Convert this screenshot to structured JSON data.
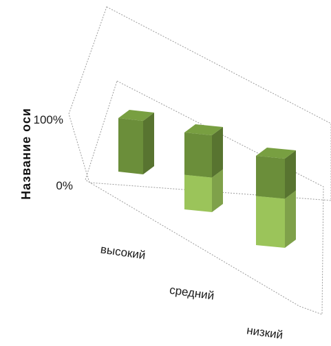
{
  "chart_data": {
    "type": "bar",
    "subtype": "3d-stacked-100-percent",
    "title": "",
    "xlabel": "",
    "ylabel": "Название оси",
    "categories": [
      "высокий",
      "средний",
      "низкий"
    ],
    "y_ticks": [
      "0%",
      "100%"
    ],
    "ylim": [
      0,
      100
    ],
    "series": [
      {
        "values": [
          0,
          45,
          55
        ]
      },
      {
        "values": [
          100,
          55,
          45
        ]
      }
    ],
    "grid": false,
    "legend": "none",
    "colors": {
      "series_bottom": "#9BC45A",
      "series_top": "#6B8E3A",
      "frame": "#9A9A9A"
    }
  }
}
